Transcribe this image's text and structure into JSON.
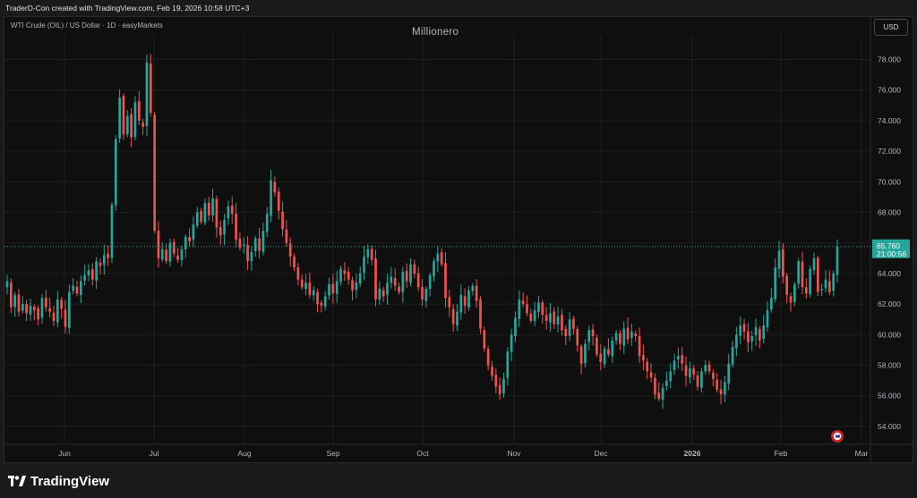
{
  "header": {
    "attribution": "TraderD-Con created with TradingView.com, Feb 19, 2026 10:58 UTC+3"
  },
  "chart_header": {
    "symbol_line": "WTI Crude (OIL) / US Dollar · 1D · easyMarkets",
    "watermark": "Millionero",
    "currency": "USD"
  },
  "price_tag": {
    "price": "65.760",
    "countdown": "21:00:56"
  },
  "footer": {
    "brand": "TradingView"
  },
  "colors": {
    "up": "#26a69a",
    "down": "#ef5350",
    "background": "#0f0f0f",
    "grid": "#1f1f1f",
    "text": "#b2b5be"
  },
  "chart_data": {
    "type": "candlestick",
    "title": "WTI Crude (OIL) / US Dollar · 1D · easyMarkets",
    "ylim": [
      53,
      79.5
    ],
    "y_ticks": [
      "54.000",
      "56.000",
      "58.000",
      "60.000",
      "62.000",
      "64.000",
      "66.000",
      "68.000",
      "70.000",
      "72.000",
      "74.000",
      "76.000",
      "78.000"
    ],
    "x_ticks": [
      "Jun",
      "Jul",
      "Aug",
      "Sep",
      "Oct",
      "Nov",
      "Dec",
      "2026",
      "Feb",
      "Mar"
    ],
    "last_price": 65.76,
    "grid": true,
    "closes": [
      63.5,
      61.8,
      62.6,
      61.5,
      62.0,
      61.4,
      61.9,
      61.6,
      61.0,
      62.4,
      61.8,
      61.5,
      60.9,
      62.3,
      61.7,
      60.5,
      62.8,
      63.2,
      62.7,
      63.5,
      63.9,
      64.2,
      63.6,
      64.8,
      64.5,
      65.2,
      65.0,
      68.5,
      72.8,
      75.5,
      73.1,
      74.3,
      72.9,
      75.2,
      74.0,
      73.6,
      77.8,
      74.5,
      66.8,
      65.0,
      65.6,
      64.8,
      66.0,
      65.3,
      64.9,
      65.6,
      66.4,
      66.1,
      67.2,
      68.0,
      67.4,
      68.6,
      67.8,
      68.9,
      67.0,
      66.5,
      67.5,
      68.4,
      67.9,
      66.2,
      65.7,
      65.9,
      64.8,
      65.4,
      66.3,
      65.5,
      66.8,
      67.9,
      70.1,
      69.3,
      68.1,
      66.9,
      66.0,
      65.1,
      64.4,
      63.6,
      63.1,
      63.4,
      62.6,
      62.9,
      62.0,
      61.9,
      62.5,
      63.3,
      62.7,
      63.5,
      64.3,
      64.0,
      63.6,
      62.9,
      63.4,
      64.0,
      65.1,
      65.6,
      64.9,
      62.3,
      63.0,
      62.5,
      63.4,
      63.8,
      63.2,
      62.8,
      64.1,
      63.5,
      64.6,
      64.0,
      63.1,
      62.3,
      63.0,
      63.9,
      64.8,
      65.3,
      64.6,
      62.4,
      61.8,
      60.7,
      61.5,
      62.6,
      61.9,
      62.9,
      63.2,
      62.2,
      60.4,
      59.1,
      58.0,
      57.3,
      56.6,
      56.1,
      57.1,
      58.9,
      60.0,
      61.1,
      62.3,
      62.0,
      61.4,
      60.9,
      61.6,
      62.1,
      61.3,
      60.9,
      61.4,
      60.7,
      61.2,
      60.3,
      59.9,
      61.0,
      60.4,
      59.3,
      58.1,
      59.4,
      60.3,
      59.9,
      58.7,
      58.2,
      59.1,
      58.7,
      59.6,
      60.1,
      59.4,
      60.4,
      59.7,
      60.2,
      59.9,
      58.6,
      58.3,
      57.6,
      57.2,
      56.1,
      55.8,
      56.5,
      57.0,
      57.6,
      58.3,
      58.6,
      58.1,
      57.3,
      57.8,
      57.4,
      56.6,
      57.6,
      58.0,
      57.6,
      57.1,
      56.4,
      56.1,
      56.9,
      58.1,
      59.2,
      60.0,
      60.6,
      60.2,
      59.5,
      59.9,
      60.5,
      59.6,
      60.6,
      61.6,
      62.4,
      64.4,
      65.5,
      63.8,
      62.6,
      62.1,
      63.3,
      64.8,
      63.1,
      62.7,
      64.3,
      65.0,
      62.8,
      63.0,
      63.6,
      62.8,
      64.0,
      65.76
    ]
  }
}
